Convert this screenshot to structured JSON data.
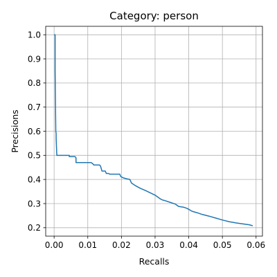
{
  "chart_data": {
    "type": "line",
    "title": "Category: person",
    "xlabel": "Recalls",
    "ylabel": "Precisions",
    "xlim": [
      -0.0025,
      0.0619
    ],
    "ylim": [
      0.165,
      1.035
    ],
    "xticks": [
      0.0,
      0.01,
      0.02,
      0.03,
      0.04,
      0.05,
      0.06
    ],
    "xtick_labels": [
      "0.00",
      "0.01",
      "0.02",
      "0.03",
      "0.04",
      "0.05",
      "0.06"
    ],
    "yticks": [
      0.2,
      0.3,
      0.4,
      0.5,
      0.6,
      0.7,
      0.8,
      0.9,
      1.0
    ],
    "ytick_labels": [
      "0.2",
      "0.3",
      "0.4",
      "0.5",
      "0.6",
      "0.7",
      "0.8",
      "0.9",
      "1.0"
    ],
    "grid": true,
    "line_color": "#1f77b4",
    "series": [
      {
        "x": [
          0.0,
          0.0003,
          0.0003,
          0.0004,
          0.0005,
          0.0006,
          0.0006,
          0.0008,
          0.001,
          0.0045,
          0.0045,
          0.0062,
          0.0065,
          0.0065,
          0.011,
          0.0115,
          0.0118,
          0.0135,
          0.0138,
          0.014,
          0.0142,
          0.0152,
          0.0155,
          0.0162,
          0.0165,
          0.0195,
          0.0198,
          0.0205,
          0.0215,
          0.0225,
          0.023,
          0.0242,
          0.0255,
          0.027,
          0.0285,
          0.03,
          0.0315,
          0.0322,
          0.033,
          0.0345,
          0.036,
          0.037,
          0.0385,
          0.0395,
          0.041,
          0.0425,
          0.044,
          0.046,
          0.048,
          0.05,
          0.052,
          0.054,
          0.056,
          0.058,
          0.059
        ],
        "y": [
          1.0,
          1.0,
          0.85,
          0.72,
          0.6,
          0.59,
          0.57,
          0.5,
          0.5,
          0.5,
          0.495,
          0.495,
          0.49,
          0.47,
          0.47,
          0.465,
          0.46,
          0.46,
          0.455,
          0.445,
          0.435,
          0.435,
          0.425,
          0.425,
          0.422,
          0.422,
          0.412,
          0.407,
          0.403,
          0.4,
          0.385,
          0.374,
          0.364,
          0.355,
          0.345,
          0.335,
          0.32,
          0.315,
          0.312,
          0.305,
          0.298,
          0.288,
          0.285,
          0.28,
          0.268,
          0.262,
          0.255,
          0.248,
          0.24,
          0.232,
          0.225,
          0.22,
          0.216,
          0.212,
          0.208
        ]
      }
    ]
  }
}
